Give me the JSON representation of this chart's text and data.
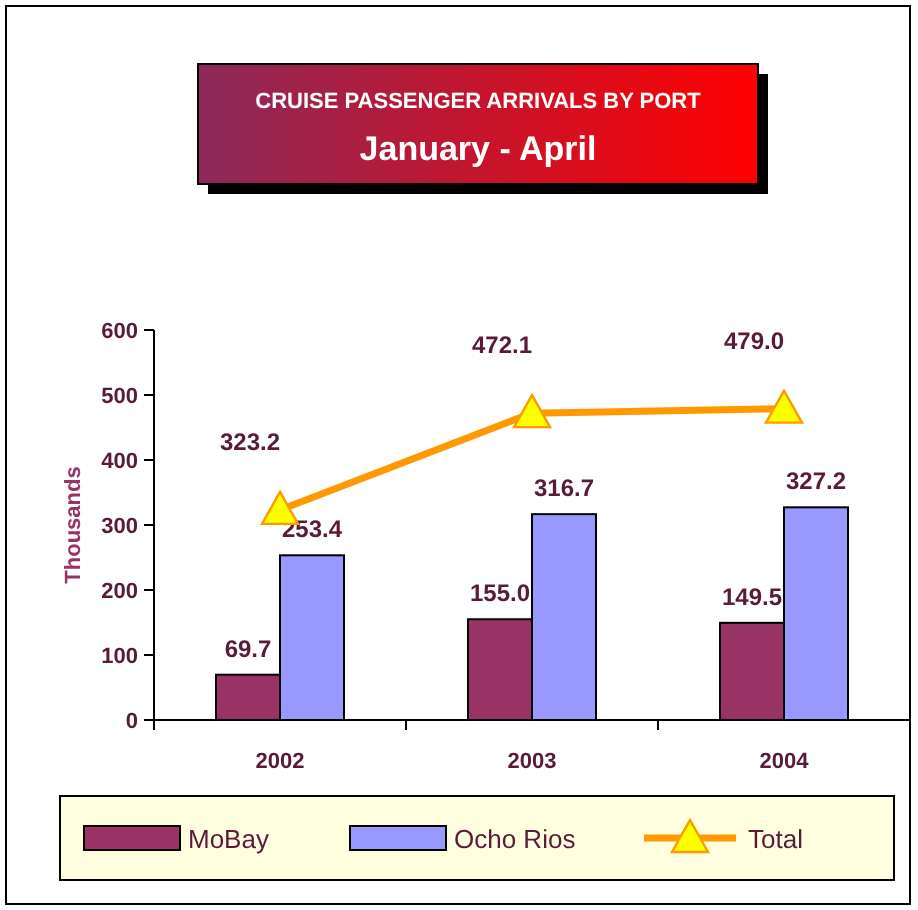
{
  "chart_data": {
    "type": "bar",
    "title": "CRUISE PASSENGER ARRIVALS BY PORT",
    "subtitle": "January - April",
    "ylabel": "Thousands",
    "categories": [
      "2002",
      "2003",
      "2004"
    ],
    "series": [
      {
        "name": "MoBay",
        "color": "#993366",
        "values": [
          69.7,
          155.0,
          149.5
        ],
        "value_labels": [
          "69.7",
          "155.0",
          "149.5"
        ]
      },
      {
        "name": "Ocho Rios",
        "color": "#9999ff",
        "values": [
          253.4,
          316.7,
          327.2
        ],
        "value_labels": [
          "253.4",
          "316.7",
          "327.2"
        ]
      },
      {
        "name": "Total",
        "type": "line",
        "color": "#ff9900",
        "marker": "triangle",
        "values": [
          323.2,
          472.1,
          479.0
        ],
        "value_labels": [
          "323.2",
          "472.1",
          "479.0"
        ]
      }
    ],
    "ylim": [
      0,
      600
    ],
    "yticks": [
      0,
      100,
      200,
      300,
      400,
      500,
      600
    ],
    "grid": false,
    "legend": "bottom"
  }
}
